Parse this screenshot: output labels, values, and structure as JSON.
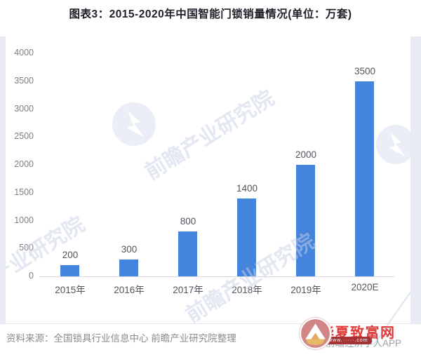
{
  "page": {
    "title": "图表3：2015-2020年中国智能门锁销量情况(单位：万套)"
  },
  "chart_data": {
    "type": "bar",
    "title": "2015-2020年中国智能门锁销量情况",
    "unit": "万套",
    "categories": [
      "2015年",
      "2016年",
      "2017年",
      "2018年",
      "2019年",
      "2020E"
    ],
    "values": [
      200,
      300,
      800,
      1400,
      2000,
      3500
    ],
    "data_labels": [
      200,
      300,
      800,
      1400,
      2000,
      3500
    ],
    "xlabel": "",
    "ylabel": "",
    "ylim": [
      0,
      4000
    ],
    "yticks": [
      0,
      500,
      1000,
      1500,
      2000,
      2500,
      3000,
      3500,
      4000
    ],
    "grid": false,
    "legend": false,
    "bar_color": "#4584dc"
  },
  "watermark": {
    "brand": "前瞻产业研究院",
    "economist": "©前瞻经济学人APP"
  },
  "footer": {
    "source": "资料来源：全国锁具行业信息中心 前瞻产业研究院整理"
  },
  "site_logo": {
    "name": "华夏致富网",
    "url_text": "www.·····.com",
    "accent_color": "#e03a3a"
  },
  "colors": {
    "bar": "#4584dc",
    "page_strip": "#e8ebf4",
    "axis": "#d8d8dc",
    "text_dark": "#20202a",
    "text_grey": "#8b8b90"
  }
}
